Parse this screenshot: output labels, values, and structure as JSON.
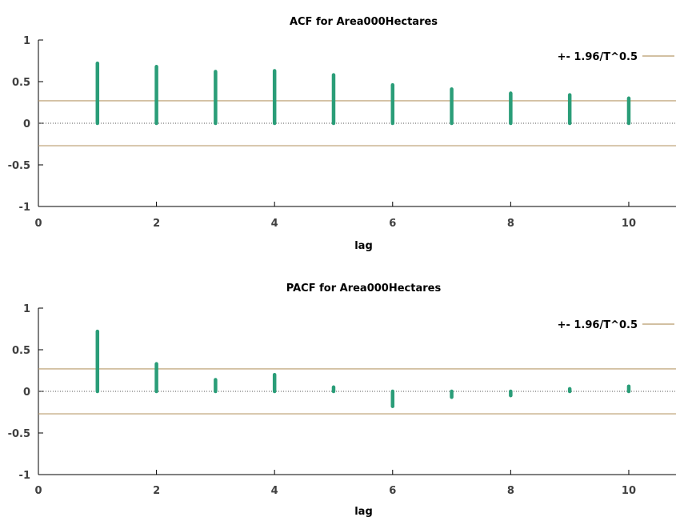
{
  "colors": {
    "bar": "#2a9d78",
    "band": "#b89a6a",
    "axis": "#000000",
    "zero_line": "#555555"
  },
  "chart_data": [
    {
      "type": "bar",
      "title": "ACF for Area000Hectares",
      "xlabel": "lag",
      "ylabel": "",
      "xlim": [
        0,
        10.8
      ],
      "ylim": [
        -1,
        1
      ],
      "xticks": [
        0,
        2,
        4,
        6,
        8,
        10
      ],
      "xtick_labels": [
        "0",
        "2",
        "4",
        "6",
        "8",
        "10"
      ],
      "yticks": [
        -1,
        -0.5,
        0,
        0.5,
        1
      ],
      "ytick_labels": [
        "-1",
        "-0.5",
        "0",
        "0.5",
        "1"
      ],
      "x": [
        1,
        2,
        3,
        4,
        5,
        6,
        7,
        8,
        9,
        10
      ],
      "values": [
        0.72,
        0.68,
        0.62,
        0.63,
        0.58,
        0.46,
        0.41,
        0.36,
        0.34,
        0.3
      ],
      "band": 0.27,
      "legend": {
        "label": "+- 1.96/T^0.5",
        "position": "top-right"
      }
    },
    {
      "type": "bar",
      "title": "PACF for Area000Hectares",
      "xlabel": "lag",
      "ylabel": "",
      "xlim": [
        0,
        10.8
      ],
      "ylim": [
        -1,
        1
      ],
      "xticks": [
        0,
        2,
        4,
        6,
        8,
        10
      ],
      "xtick_labels": [
        "0",
        "2",
        "4",
        "6",
        "8",
        "10"
      ],
      "yticks": [
        -1,
        -0.5,
        0,
        0.5,
        1
      ],
      "ytick_labels": [
        "-1",
        "-0.5",
        "0",
        "0.5",
        "1"
      ],
      "x": [
        1,
        2,
        3,
        4,
        5,
        6,
        7,
        8,
        9,
        10
      ],
      "values": [
        0.72,
        0.33,
        0.14,
        0.2,
        0.05,
        -0.18,
        -0.07,
        -0.05,
        0.03,
        0.06
      ],
      "band": 0.27,
      "legend": {
        "label": "+- 1.96/T^0.5",
        "position": "top-right"
      }
    }
  ]
}
